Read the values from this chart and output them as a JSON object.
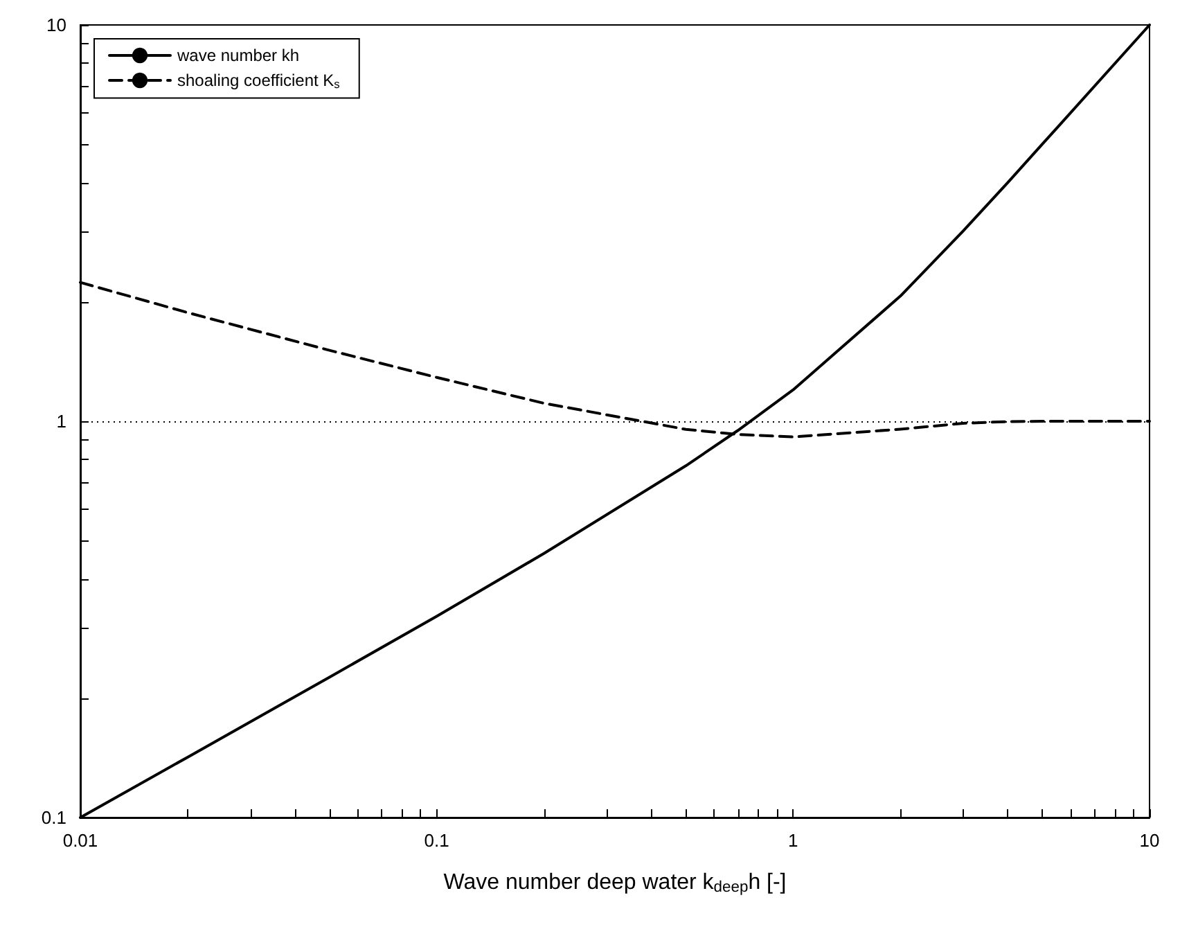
{
  "chart_data": {
    "type": "line",
    "xlabel": "Wave number deep water k$_{deep}$h [-]",
    "log": "xy",
    "xlim": [
      0.01,
      10
    ],
    "ylim": [
      0.1,
      10
    ],
    "xticks": [
      0.01,
      {
        "value": 0.02,
        "label": null
      },
      {
        "value": 0.03,
        "label": null
      },
      {
        "value": 0.04,
        "label": null
      },
      {
        "value": 0.05,
        "label": null
      },
      {
        "value": 0.06,
        "label": null
      },
      {
        "value": 0.07,
        "label": null
      },
      {
        "value": 0.08,
        "label": null
      },
      {
        "value": 0.09,
        "label": null
      },
      0.1,
      {
        "value": 0.2,
        "label": null
      },
      {
        "value": 0.3,
        "label": null
      },
      {
        "value": 0.4,
        "label": null
      },
      {
        "value": 0.5,
        "label": null
      },
      {
        "value": 0.6,
        "label": null
      },
      {
        "value": 0.7,
        "label": null
      },
      {
        "value": 0.8,
        "label": null
      },
      {
        "value": 0.9,
        "label": null
      },
      1,
      {
        "value": 2,
        "label": null
      },
      {
        "value": 3,
        "label": null
      },
      {
        "value": 4,
        "label": null
      },
      {
        "value": 5,
        "label": null
      },
      {
        "value": 6,
        "label": null
      },
      {
        "value": 7,
        "label": null
      },
      {
        "value": 8,
        "label": null
      },
      {
        "value": 9,
        "label": null
      },
      10
    ],
    "yticks": [
      0.1,
      {
        "value": 0.2,
        "label": null
      },
      {
        "value": 0.3,
        "label": null
      },
      {
        "value": 0.4,
        "label": null
      },
      {
        "value": 0.5,
        "label": null
      },
      {
        "value": 0.6,
        "label": null
      },
      {
        "value": 0.7,
        "label": null
      },
      {
        "value": 0.8,
        "label": null
      },
      {
        "value": 0.9,
        "label": null
      },
      1,
      {
        "value": 2,
        "label": null
      },
      {
        "value": 3,
        "label": null
      },
      {
        "value": 4,
        "label": null
      },
      {
        "value": 5,
        "label": null
      },
      {
        "value": 6,
        "label": null
      },
      {
        "value": 7,
        "label": null
      },
      {
        "value": 8,
        "label": null
      },
      {
        "value": 9,
        "label": null
      },
      10
    ],
    "x": [
      0.01,
      0.02,
      0.05,
      0.1,
      0.2,
      0.5,
      0.7,
      1,
      2,
      3,
      4,
      5,
      10
    ],
    "series": [
      {
        "name": "wave number kh",
        "color": "#000000",
        "line_style": "solid",
        "values": [
          0.1,
          0.142,
          0.226,
          0.322,
          0.464,
          0.772,
          0.948,
          1.2,
          2.07,
          3.02,
          4.0,
          5.0,
          10
        ]
      },
      {
        "name": "shoaling coefficient K$_{s}$",
        "color": "#000000",
        "line_style": "dashed",
        "values": [
          2.24,
          1.88,
          1.51,
          1.29,
          1.11,
          0.954,
          0.926,
          0.913,
          0.955,
          0.988,
          0.998,
          1.0,
          1.0
        ]
      }
    ],
    "ref_lines": [
      {
        "axis": "y",
        "value": 1,
        "color": "#000000",
        "line_style": "dotted"
      }
    ],
    "legend": "top left",
    "grid": false,
    "marker": "none"
  }
}
